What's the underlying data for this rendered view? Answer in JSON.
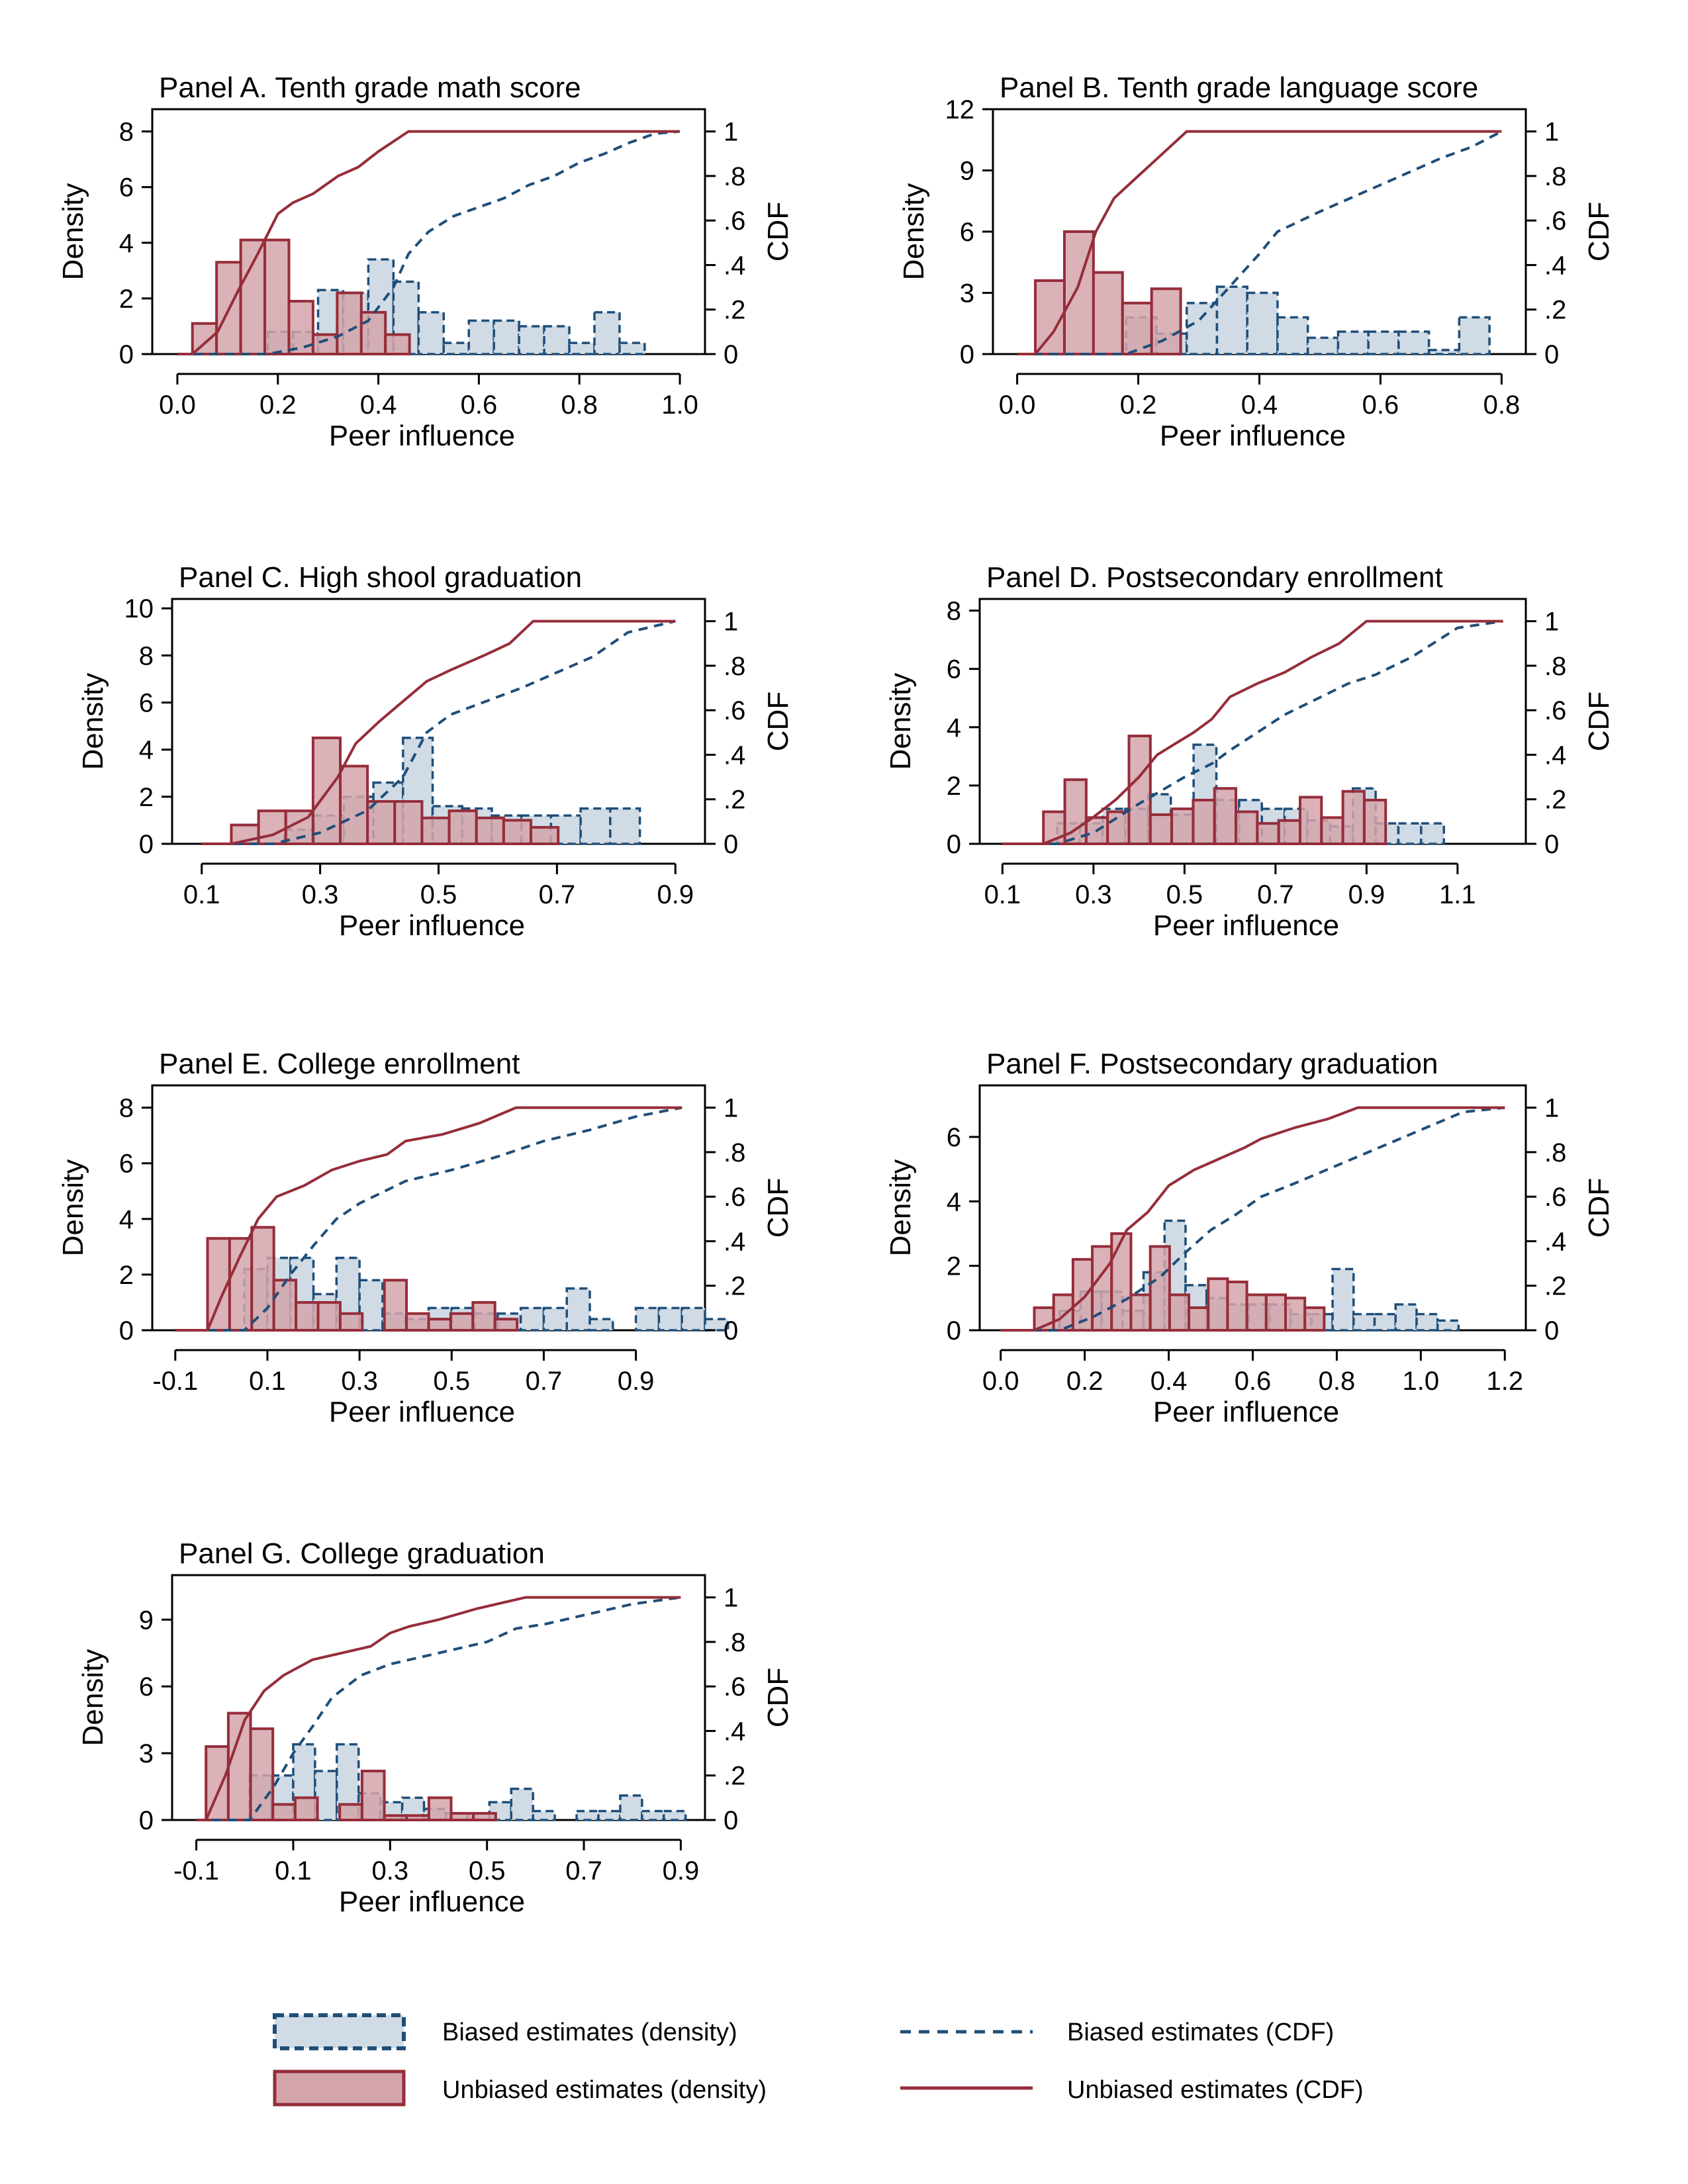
{
  "colors": {
    "biased_fill": "#d0dbe5",
    "biased_line": "#1f4e79",
    "unbiased_fill": "#d4a4ab",
    "unbiased_line": "#962d3a",
    "axis": "#000000"
  },
  "legend": {
    "biased_density": "Biased estimates (density)",
    "unbiased_density": "Unbiased estimates (density)",
    "biased_cdf": "Biased estimates (CDF)",
    "unbiased_cdf": "Unbiased estimates (CDF)"
  },
  "chart_data": [
    {
      "id": "A",
      "type": "histogram+cdf",
      "title": "Panel A. Tenth grade math score",
      "xlabel": "Peer influence",
      "ylabel": "Density",
      "y2label": "CDF",
      "xlim": [
        -0.05,
        1.05
      ],
      "ylim": [
        0,
        8.8
      ],
      "y2lim": [
        0,
        1.1
      ],
      "xticks": [
        0,
        0.2,
        0.4,
        0.6,
        0.8,
        1.0
      ],
      "xtick_labels": [
        "0.0",
        "0.2",
        "0.4",
        "0.6",
        "0.8",
        "1.0"
      ],
      "yticks": [
        0,
        2,
        4,
        6,
        8
      ],
      "ytick_labels": [
        "0",
        "2",
        "4",
        "6",
        "8"
      ],
      "y2ticks": [
        0,
        0.2,
        0.4,
        0.6,
        0.8,
        1
      ],
      "y2tick_labels": [
        "0",
        ".2",
        ".4",
        ".6",
        ".8",
        "1"
      ],
      "biased_hist": {
        "start": 0.18,
        "width": 0.05,
        "values": [
          0.8,
          0.8,
          2.3,
          2.2,
          3.4,
          2.6,
          1.5,
          0.4,
          1.2,
          1.2,
          1.0,
          1.0,
          0.4,
          1.5,
          0.4
        ]
      },
      "unbiased_hist": {
        "start": 0.03,
        "width": 0.048,
        "values": [
          1.1,
          3.3,
          4.1,
          4.1,
          1.9,
          0.7,
          2.2,
          1.5,
          0.7
        ]
      },
      "biased_cdf": {
        "x": [
          0.0,
          0.18,
          0.25,
          0.32,
          0.38,
          0.43,
          0.46,
          0.5,
          0.55,
          0.6,
          0.65,
          0.7,
          0.75,
          0.8,
          0.85,
          0.9,
          0.95,
          1.0
        ],
        "y": [
          0,
          0,
          0.03,
          0.08,
          0.15,
          0.3,
          0.45,
          0.55,
          0.62,
          0.66,
          0.7,
          0.76,
          0.8,
          0.86,
          0.9,
          0.95,
          0.99,
          1
        ]
      },
      "unbiased_cdf": {
        "x": [
          0.0,
          0.03,
          0.08,
          0.12,
          0.16,
          0.2,
          0.23,
          0.27,
          0.32,
          0.36,
          0.4,
          0.46,
          1.0
        ],
        "y": [
          0,
          0,
          0.1,
          0.28,
          0.45,
          0.63,
          0.68,
          0.72,
          0.8,
          0.84,
          0.91,
          1,
          1
        ]
      }
    },
    {
      "id": "B",
      "type": "histogram+cdf",
      "title": "Panel B. Tenth grade language score",
      "xlabel": "Peer influence",
      "ylabel": "Density",
      "y2label": "CDF",
      "xlim": [
        -0.04,
        0.84
      ],
      "ylim": [
        0,
        12
      ],
      "y2lim": [
        0,
        1.1
      ],
      "xticks": [
        0,
        0.2,
        0.4,
        0.6,
        0.8
      ],
      "xtick_labels": [
        "0.0",
        "0.2",
        "0.4",
        "0.6",
        "0.8"
      ],
      "yticks": [
        0,
        3,
        6,
        9,
        12
      ],
      "ytick_labels": [
        "0",
        "3",
        "6",
        "9",
        "12"
      ],
      "y2ticks": [
        0,
        0.2,
        0.4,
        0.6,
        0.8,
        1
      ],
      "y2tick_labels": [
        "0",
        ".2",
        ".4",
        ".6",
        ".8",
        "1"
      ],
      "biased_hist": {
        "start": 0.18,
        "width": 0.05,
        "values": [
          1.8,
          1.0,
          2.5,
          3.3,
          3.0,
          1.8,
          0.8,
          1.1,
          1.1,
          1.1,
          0.2,
          1.8
        ]
      },
      "unbiased_hist": {
        "start": 0.03,
        "width": 0.048,
        "values": [
          3.6,
          6.0,
          4.0,
          2.5,
          3.2
        ]
      },
      "biased_cdf": {
        "x": [
          0.0,
          0.18,
          0.24,
          0.3,
          0.35,
          0.4,
          0.43,
          0.5,
          0.55,
          0.6,
          0.65,
          0.7,
          0.75,
          0.8
        ],
        "y": [
          0,
          0,
          0.06,
          0.15,
          0.3,
          0.45,
          0.55,
          0.64,
          0.7,
          0.76,
          0.82,
          0.88,
          0.93,
          1
        ]
      },
      "unbiased_cdf": {
        "x": [
          0.0,
          0.03,
          0.06,
          0.1,
          0.13,
          0.16,
          0.2,
          0.24,
          0.28,
          0.8
        ],
        "y": [
          0,
          0,
          0.1,
          0.3,
          0.55,
          0.7,
          0.8,
          0.9,
          1,
          1
        ]
      }
    },
    {
      "id": "C",
      "type": "histogram+cdf",
      "title": "Panel C. High shool graduation",
      "xlabel": "Peer influence",
      "ylabel": "Density",
      "y2label": "CDF",
      "xlim": [
        0.05,
        0.95
      ],
      "ylim": [
        0,
        10.4
      ],
      "y2lim": [
        0,
        1.1
      ],
      "xticks": [
        0.1,
        0.3,
        0.5,
        0.7,
        0.9
      ],
      "xtick_labels": [
        "0.1",
        "0.3",
        "0.5",
        "0.7",
        "0.9"
      ],
      "yticks": [
        0,
        2,
        4,
        6,
        8,
        10
      ],
      "ytick_labels": [
        "0",
        "2",
        "4",
        "6",
        "8",
        "10"
      ],
      "y2ticks": [
        0,
        0.2,
        0.4,
        0.6,
        0.8,
        1
      ],
      "y2tick_labels": [
        "0",
        ".2",
        ".4",
        ".6",
        ".8",
        "1"
      ],
      "biased_hist": {
        "start": 0.24,
        "width": 0.05,
        "values": [
          0.6,
          1.2,
          2.0,
          2.6,
          4.5,
          1.6,
          1.5,
          1.2,
          1.2,
          1.2,
          1.5,
          1.5
        ]
      },
      "unbiased_hist": {
        "start": 0.15,
        "width": 0.046,
        "values": [
          0.8,
          1.4,
          1.4,
          4.5,
          3.3,
          1.8,
          1.8,
          1.1,
          1.4,
          1.1,
          1.0,
          0.7
        ]
      },
      "biased_cdf": {
        "x": [
          0.1,
          0.22,
          0.3,
          0.38,
          0.44,
          0.48,
          0.52,
          0.58,
          0.64,
          0.7,
          0.76,
          0.82,
          0.9
        ],
        "y": [
          0,
          0,
          0.05,
          0.15,
          0.3,
          0.5,
          0.58,
          0.64,
          0.7,
          0.77,
          0.84,
          0.95,
          1
        ]
      },
      "unbiased_cdf": {
        "x": [
          0.1,
          0.15,
          0.22,
          0.28,
          0.33,
          0.36,
          0.4,
          0.44,
          0.48,
          0.52,
          0.58,
          0.62,
          0.66,
          0.9
        ],
        "y": [
          0,
          0,
          0.04,
          0.12,
          0.3,
          0.45,
          0.55,
          0.64,
          0.73,
          0.78,
          0.85,
          0.9,
          1,
          1
        ]
      }
    },
    {
      "id": "D",
      "type": "histogram+cdf",
      "title": "Panel D. Postsecondary enrollment",
      "xlabel": "Peer influence",
      "ylabel": "Density",
      "y2label": "CDF",
      "xlim": [
        0.05,
        1.25
      ],
      "ylim": [
        0,
        8.4
      ],
      "y2lim": [
        0,
        1.1
      ],
      "xticks": [
        0.1,
        0.3,
        0.5,
        0.7,
        0.9,
        1.1
      ],
      "xtick_labels": [
        "0.1",
        "0.3",
        "0.5",
        "0.7",
        "0.9",
        "1.1"
      ],
      "yticks": [
        0,
        2,
        4,
        6,
        8
      ],
      "ytick_labels": [
        "0",
        "2",
        "4",
        "6",
        "8"
      ],
      "y2ticks": [
        0,
        0.2,
        0.4,
        0.6,
        0.8,
        1
      ],
      "y2tick_labels": [
        "0",
        ".2",
        ".4",
        ".6",
        ".8",
        "1"
      ],
      "biased_hist": {
        "start": 0.22,
        "width": 0.05,
        "values": [
          0.7,
          0.7,
          1.2,
          1.2,
          1.7,
          1.0,
          3.4,
          1.5,
          1.5,
          1.2,
          1.2,
          0.8,
          0.6,
          1.9,
          0.7,
          0.7,
          0.7
        ]
      },
      "unbiased_hist": {
        "start": 0.19,
        "width": 0.047,
        "values": [
          1.1,
          2.2,
          0.9,
          1.1,
          3.7,
          1.0,
          1.2,
          1.5,
          1.9,
          1.1,
          0.7,
          0.8,
          1.6,
          0.9,
          1.8,
          1.5
        ]
      },
      "biased_cdf": {
        "x": [
          0.1,
          0.22,
          0.3,
          0.4,
          0.5,
          0.56,
          0.6,
          0.66,
          0.72,
          0.8,
          0.86,
          0.92,
          1.0,
          1.1,
          1.2
        ],
        "y": [
          0,
          0,
          0.05,
          0.18,
          0.3,
          0.36,
          0.42,
          0.5,
          0.58,
          0.66,
          0.72,
          0.76,
          0.84,
          0.97,
          1
        ]
      },
      "unbiased_cdf": {
        "x": [
          0.1,
          0.19,
          0.25,
          0.3,
          0.35,
          0.4,
          0.44,
          0.48,
          0.52,
          0.56,
          0.6,
          0.66,
          0.72,
          0.78,
          0.84,
          0.9,
          1.2
        ],
        "y": [
          0,
          0,
          0.05,
          0.12,
          0.2,
          0.3,
          0.4,
          0.45,
          0.5,
          0.56,
          0.66,
          0.72,
          0.77,
          0.84,
          0.9,
          1,
          1
        ]
      }
    },
    {
      "id": "E",
      "type": "histogram+cdf",
      "title": "Panel E. College enrollment",
      "xlabel": "Peer influence",
      "ylabel": "Density",
      "y2label": "CDF",
      "xlim": [
        -0.15,
        1.05
      ],
      "ylim": [
        0,
        8.8
      ],
      "y2lim": [
        0,
        1.1
      ],
      "xticks": [
        -0.1,
        0.1,
        0.3,
        0.5,
        0.7,
        0.9
      ],
      "xtick_labels": [
        "-0.1",
        "0.1",
        "0.3",
        "0.5",
        "0.7",
        "0.9"
      ],
      "yticks": [
        0,
        2,
        4,
        6,
        8
      ],
      "ytick_labels": [
        "0",
        "2",
        "4",
        "6",
        "8"
      ],
      "y2ticks": [
        0,
        0.2,
        0.4,
        0.6,
        0.8,
        1
      ],
      "y2tick_labels": [
        "0",
        ".2",
        ".4",
        ".6",
        ".8",
        "1"
      ],
      "biased_hist": {
        "start": 0.05,
        "width": 0.05,
        "values": [
          2.2,
          2.6,
          2.6,
          1.3,
          2.6,
          1.8,
          0.6,
          0.4,
          0.8,
          0.8,
          0.6,
          0.6,
          0.8,
          0.8,
          1.5,
          0.4,
          0.0,
          0.8,
          0.8,
          0.8,
          0.4
        ]
      },
      "unbiased_hist": {
        "start": -0.03,
        "width": 0.048,
        "values": [
          3.3,
          3.3,
          3.7,
          1.8,
          1.0,
          1.0,
          0.6,
          0.0,
          1.8,
          0.6,
          0.4,
          0.6,
          1.0,
          0.4
        ]
      },
      "biased_cdf": {
        "x": [
          -0.1,
          0.05,
          0.1,
          0.15,
          0.2,
          0.25,
          0.3,
          0.35,
          0.4,
          0.5,
          0.6,
          0.7,
          0.8,
          0.9,
          1.0
        ],
        "y": [
          0,
          0,
          0.1,
          0.25,
          0.38,
          0.5,
          0.57,
          0.62,
          0.67,
          0.72,
          0.78,
          0.85,
          0.9,
          0.96,
          1
        ]
      },
      "unbiased_cdf": {
        "x": [
          -0.1,
          -0.03,
          0.0,
          0.04,
          0.08,
          0.12,
          0.18,
          0.24,
          0.3,
          0.36,
          0.4,
          0.48,
          0.56,
          0.64,
          1.0
        ],
        "y": [
          0,
          0,
          0.15,
          0.33,
          0.5,
          0.6,
          0.65,
          0.72,
          0.76,
          0.79,
          0.85,
          0.88,
          0.93,
          1,
          1
        ]
      }
    },
    {
      "id": "F",
      "type": "histogram+cdf",
      "title": "Panel F. Postsecondary graduation",
      "xlabel": "Peer influence",
      "ylabel": "Density",
      "y2label": "CDF",
      "xlim": [
        -0.05,
        1.25
      ],
      "ylim": [
        0,
        7.6
      ],
      "y2lim": [
        0,
        1.1
      ],
      "xticks": [
        0,
        0.2,
        0.4,
        0.6,
        0.8,
        1.0,
        1.2
      ],
      "xtick_labels": [
        "0.0",
        "0.2",
        "0.4",
        "0.6",
        "0.8",
        "1.0",
        "1.2"
      ],
      "yticks": [
        0,
        2,
        4,
        6
      ],
      "ytick_labels": [
        "0",
        "2",
        "4",
        "6"
      ],
      "y2ticks": [
        0,
        0.2,
        0.4,
        0.6,
        0.8,
        1
      ],
      "y2tick_labels": [
        "0",
        ".2",
        ".4",
        ".6",
        ".8",
        "1"
      ],
      "biased_hist": {
        "start": 0.14,
        "width": 0.05,
        "values": [
          0.6,
          1.2,
          1.2,
          0.6,
          1.8,
          3.4,
          1.4,
          1.0,
          0.8,
          0.8,
          0.8,
          0.5,
          0.5,
          1.9,
          0.5,
          0.5,
          0.8,
          0.5,
          0.3
        ]
      },
      "unbiased_hist": {
        "start": 0.08,
        "width": 0.046,
        "values": [
          0.7,
          1.1,
          2.2,
          2.6,
          3.0,
          1.1,
          2.6,
          1.1,
          0.7,
          1.6,
          1.5,
          1.1,
          1.1,
          1.0,
          0.7
        ]
      },
      "biased_cdf": {
        "x": [
          0.0,
          0.14,
          0.22,
          0.3,
          0.38,
          0.44,
          0.5,
          0.56,
          0.62,
          0.7,
          0.8,
          0.9,
          1.0,
          1.1,
          1.2
        ],
        "y": [
          0,
          0,
          0.06,
          0.14,
          0.24,
          0.35,
          0.45,
          0.52,
          0.6,
          0.66,
          0.74,
          0.82,
          0.9,
          0.98,
          1
        ]
      },
      "unbiased_cdf": {
        "x": [
          0.0,
          0.08,
          0.14,
          0.2,
          0.26,
          0.3,
          0.35,
          0.4,
          0.46,
          0.52,
          0.58,
          0.62,
          0.7,
          0.78,
          0.85,
          1.2
        ],
        "y": [
          0,
          0,
          0.05,
          0.15,
          0.3,
          0.45,
          0.53,
          0.65,
          0.72,
          0.77,
          0.82,
          0.86,
          0.91,
          0.95,
          1,
          1
        ]
      }
    },
    {
      "id": "G",
      "type": "histogram+cdf",
      "title": "Panel G. College graduation",
      "xlabel": "Peer influence",
      "ylabel": "Density",
      "y2label": "CDF",
      "xlim": [
        -0.15,
        0.95
      ],
      "ylim": [
        0,
        11
      ],
      "y2lim": [
        0,
        1.1
      ],
      "xticks": [
        -0.1,
        0.1,
        0.3,
        0.5,
        0.7,
        0.9
      ],
      "xtick_labels": [
        "-0.1",
        "0.1",
        "0.3",
        "0.5",
        "0.7",
        "0.9"
      ],
      "yticks": [
        0,
        3,
        6,
        9
      ],
      "ytick_labels": [
        "0",
        "3",
        "6",
        "9"
      ],
      "y2ticks": [
        0,
        0.2,
        0.4,
        0.6,
        0.8,
        1
      ],
      "y2tick_labels": [
        "0",
        ".2",
        ".4",
        ".6",
        ".8",
        "1"
      ],
      "biased_hist": {
        "start": 0.01,
        "width": 0.045,
        "values": [
          2.0,
          2.0,
          3.4,
          2.2,
          3.4,
          1.2,
          0.8,
          1.0,
          0.5,
          0.3,
          0.3,
          0.8,
          1.4,
          0.4,
          0.0,
          0.4,
          0.4,
          1.1,
          0.4,
          0.4
        ]
      },
      "unbiased_hist": {
        "start": -0.08,
        "width": 0.046,
        "values": [
          3.3,
          4.8,
          4.1,
          0.7,
          1.0,
          0.0,
          0.7,
          2.2,
          0.2,
          0.2,
          1.0,
          0.3,
          0.3
        ]
      },
      "biased_cdf": {
        "x": [
          -0.1,
          0.01,
          0.06,
          0.1,
          0.14,
          0.18,
          0.24,
          0.3,
          0.36,
          0.42,
          0.5,
          0.56,
          0.62,
          0.7,
          0.8,
          0.9
        ],
        "y": [
          0,
          0,
          0.15,
          0.3,
          0.42,
          0.55,
          0.65,
          0.7,
          0.73,
          0.76,
          0.8,
          0.86,
          0.88,
          0.92,
          0.97,
          1
        ]
      },
      "unbiased_cdf": {
        "x": [
          -0.1,
          -0.08,
          -0.04,
          0.0,
          0.04,
          0.08,
          0.14,
          0.2,
          0.26,
          0.3,
          0.34,
          0.4,
          0.48,
          0.58,
          0.9
        ],
        "y": [
          0,
          0,
          0.2,
          0.45,
          0.58,
          0.65,
          0.72,
          0.75,
          0.78,
          0.84,
          0.87,
          0.9,
          0.95,
          1,
          1
        ]
      }
    }
  ]
}
